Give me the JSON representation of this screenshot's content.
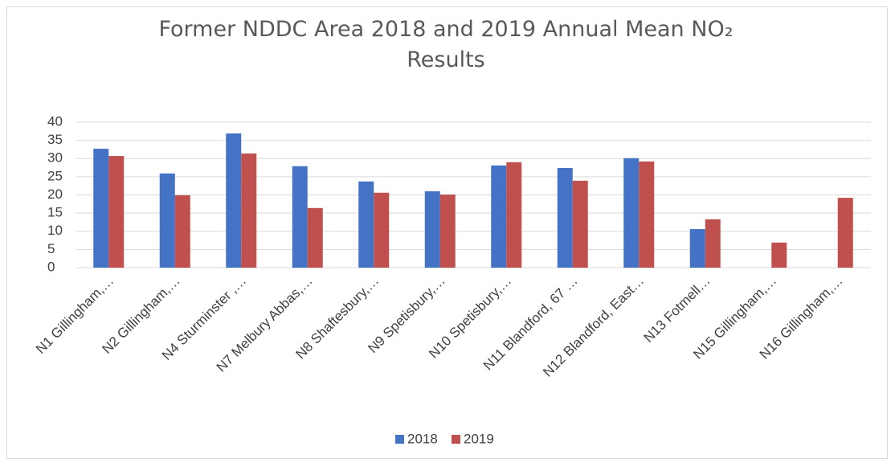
{
  "chart_data": {
    "type": "bar",
    "title": "Former NDDC Area 2018 and 2019 Annual Mean NO₂ Results",
    "categories": [
      "N1 Gillingham,…",
      "N2 Gillingham,…",
      "N4 Sturminster ,…",
      "N7 Melbury Abbas,…",
      "N8 Shaftesbury,…",
      "N9 Spetisbury,…",
      "N10 Spetisbury,…",
      "N11 Blandford, 67 …",
      "N12 Blandford, East…",
      "N13 Fotmell…",
      "N15 Gillingham,…",
      "N16 Gillingham,…"
    ],
    "series": [
      {
        "name": "2018",
        "color": "#4472c4",
        "values": [
          32.7,
          25.9,
          36.9,
          27.9,
          23.7,
          21.0,
          28.1,
          27.4,
          30.1,
          10.6,
          null,
          null
        ]
      },
      {
        "name": "2019",
        "color": "#c0504d",
        "values": [
          30.7,
          19.9,
          31.4,
          16.4,
          20.6,
          20.1,
          29.0,
          23.9,
          29.2,
          13.3,
          6.9,
          19.2
        ]
      }
    ],
    "ylim": [
      0,
      40
    ],
    "yticks": [
      0,
      5,
      10,
      15,
      20,
      25,
      30,
      35,
      40
    ],
    "grid": true,
    "legend": "bottom"
  }
}
